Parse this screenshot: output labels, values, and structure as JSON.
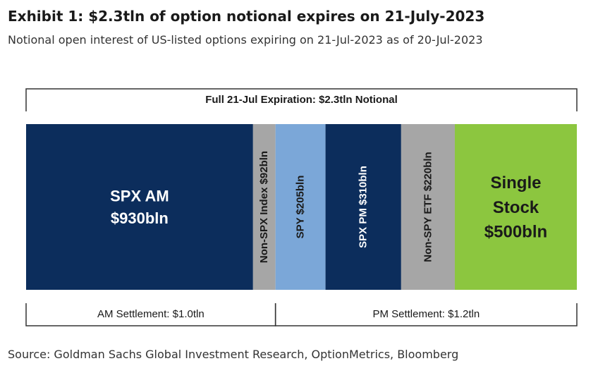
{
  "title": "Exhibit 1: $2.3tln of option notional expires on 21-July-2023",
  "subtitle": "Notional open interest of US-listed options expiring on 21-Jul-2023 as of 20-Jul-2023",
  "source": "Source: Goldman Sachs Global Investment Research, OptionMetrics, Bloomberg",
  "chart_data": {
    "type": "bar",
    "orientation": "stacked-horizontal",
    "unit": "bln",
    "top_bracket": {
      "label": "Full 21-Jul Expiration: $2.3tln Notional",
      "total": 2300
    },
    "segments": [
      {
        "name": "SPX AM",
        "value": 930,
        "lines": [
          "SPX AM",
          "$930bln"
        ],
        "vertical": false,
        "color": "#0c2d5c",
        "text_color": "#ffffff"
      },
      {
        "name": "Non-SPX Index",
        "value": 92,
        "lines": [
          "Non-SPX Index $92bln"
        ],
        "vertical": true,
        "color": "#a6a6a6",
        "text_color": "#1a1a1a"
      },
      {
        "name": "SPY",
        "value": 205,
        "lines": [
          "SPY $205bln"
        ],
        "vertical": true,
        "color": "#7ba7d8",
        "text_color": "#1a1a1a"
      },
      {
        "name": "SPX PM",
        "value": 310,
        "lines": [
          "SPX PM $310bln"
        ],
        "vertical": true,
        "color": "#0c2d5c",
        "text_color": "#ffffff"
      },
      {
        "name": "Non-SPY ETF",
        "value": 220,
        "lines": [
          "Non-SPY ETF $220bln"
        ],
        "vertical": true,
        "color": "#a6a6a6",
        "text_color": "#1a1a1a"
      },
      {
        "name": "Single Stock",
        "value": 500,
        "lines": [
          "Single",
          "Stock",
          "$500bln"
        ],
        "vertical": false,
        "color": "#8cc63f",
        "text_color": "#1a1a1a"
      }
    ],
    "bottom_brackets": [
      {
        "label": "AM Settlement: $1.0tln",
        "value": 1000,
        "start": 0,
        "end": 1022
      },
      {
        "label": "PM Settlement: $1.2tln",
        "value": 1200,
        "start": 1022,
        "end": 2257
      }
    ]
  }
}
